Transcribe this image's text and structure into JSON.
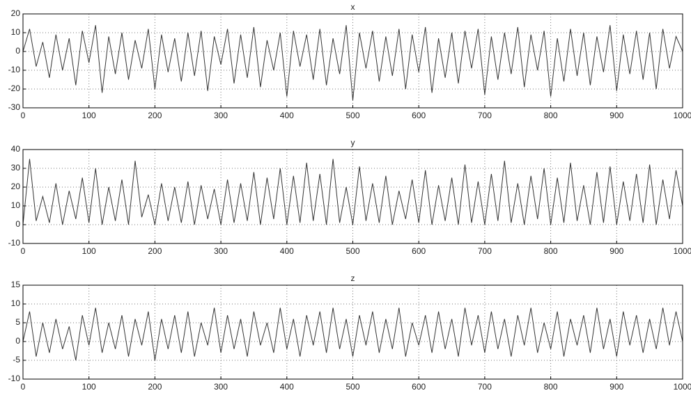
{
  "chart_data": [
    {
      "type": "line",
      "title": "x",
      "grid": true,
      "x": [
        0,
        10,
        20,
        30,
        40,
        50,
        60,
        70,
        80,
        90,
        100,
        110,
        120,
        130,
        140,
        150,
        160,
        170,
        180,
        190,
        200,
        210,
        220,
        230,
        240,
        250,
        260,
        270,
        280,
        290,
        300,
        310,
        320,
        330,
        340,
        350,
        360,
        370,
        380,
        390,
        400,
        410,
        420,
        430,
        440,
        450,
        460,
        470,
        480,
        490,
        500,
        510,
        520,
        530,
        540,
        550,
        560,
        570,
        580,
        590,
        600,
        610,
        620,
        630,
        640,
        650,
        660,
        670,
        680,
        690,
        700,
        710,
        720,
        730,
        740,
        750,
        760,
        770,
        780,
        790,
        800,
        810,
        820,
        830,
        840,
        850,
        860,
        870,
        880,
        890,
        900,
        910,
        920,
        930,
        940,
        950,
        960,
        970,
        980,
        990,
        1000
      ],
      "series": [
        {
          "color": "#333333",
          "values": [
            0,
            12,
            -8,
            5,
            -14,
            9,
            -10,
            7,
            -18,
            11,
            -6,
            14,
            -22,
            8,
            -12,
            10,
            -15,
            6,
            -9,
            12,
            -20,
            9,
            -11,
            7,
            -16,
            10,
            -13,
            11,
            -21,
            8,
            -7,
            12,
            -17,
            9,
            -14,
            13,
            -19,
            6,
            -10,
            10,
            -24,
            11,
            -8,
            9,
            -15,
            12,
            -18,
            7,
            -12,
            14,
            -26,
            10,
            -9,
            11,
            -16,
            8,
            -13,
            12,
            -20,
            9,
            -11,
            13,
            -22,
            7,
            -14,
            10,
            -17,
            11,
            -9,
            12,
            -23,
            8,
            -15,
            10,
            -12,
            13,
            -19,
            9,
            -10,
            11,
            -24,
            7,
            -16,
            12,
            -13,
            10,
            -18,
            8,
            -11,
            14,
            -21,
            9,
            -12,
            11,
            -15,
            10,
            -20,
            12,
            -9,
            8,
            0
          ]
        }
      ],
      "xlim": [
        0,
        1000
      ],
      "xticks": [
        0,
        100,
        200,
        300,
        400,
        500,
        600,
        700,
        800,
        900,
        1000
      ],
      "ylim": [
        -30,
        20
      ],
      "yticks": [
        -30,
        -20,
        -10,
        0,
        10,
        20
      ]
    },
    {
      "type": "line",
      "title": "y",
      "grid": true,
      "x": [
        0,
        10,
        20,
        30,
        40,
        50,
        60,
        70,
        80,
        90,
        100,
        110,
        120,
        130,
        140,
        150,
        160,
        170,
        180,
        190,
        200,
        210,
        220,
        230,
        240,
        250,
        260,
        270,
        280,
        290,
        300,
        310,
        320,
        330,
        340,
        350,
        360,
        370,
        380,
        390,
        400,
        410,
        420,
        430,
        440,
        450,
        460,
        470,
        480,
        490,
        500,
        510,
        520,
        530,
        540,
        550,
        560,
        570,
        580,
        590,
        600,
        610,
        620,
        630,
        640,
        650,
        660,
        670,
        680,
        690,
        700,
        710,
        720,
        730,
        740,
        750,
        760,
        770,
        780,
        790,
        800,
        810,
        820,
        830,
        840,
        850,
        860,
        870,
        880,
        890,
        900,
        910,
        920,
        930,
        940,
        950,
        960,
        970,
        980,
        990,
        1000
      ],
      "series": [
        {
          "color": "#333333",
          "values": [
            0,
            35,
            2,
            15,
            1,
            22,
            0,
            18,
            3,
            25,
            1,
            30,
            0,
            20,
            2,
            24,
            0,
            34,
            4,
            16,
            0,
            22,
            2,
            20,
            1,
            23,
            0,
            21,
            3,
            19,
            0,
            24,
            1,
            22,
            2,
            28,
            0,
            25,
            3,
            30,
            0,
            26,
            1,
            33,
            2,
            27,
            0,
            35,
            1,
            20,
            0,
            31,
            2,
            22,
            1,
            26,
            0,
            18,
            3,
            24,
            1,
            29,
            0,
            21,
            2,
            25,
            0,
            32,
            1,
            23,
            0,
            27,
            2,
            34,
            1,
            22,
            0,
            26,
            3,
            30,
            0,
            25,
            1,
            33,
            2,
            21,
            0,
            28,
            1,
            31,
            0,
            23,
            2,
            27,
            1,
            32,
            0,
            24,
            3,
            29,
            10
          ]
        }
      ],
      "xlim": [
        0,
        1000
      ],
      "xticks": [
        0,
        100,
        200,
        300,
        400,
        500,
        600,
        700,
        800,
        900,
        1000
      ],
      "ylim": [
        -10,
        40
      ],
      "yticks": [
        -10,
        0,
        10,
        20,
        30,
        40
      ]
    },
    {
      "type": "line",
      "title": "z",
      "grid": true,
      "x": [
        0,
        10,
        20,
        30,
        40,
        50,
        60,
        70,
        80,
        90,
        100,
        110,
        120,
        130,
        140,
        150,
        160,
        170,
        180,
        190,
        200,
        210,
        220,
        230,
        240,
        250,
        260,
        270,
        280,
        290,
        300,
        310,
        320,
        330,
        340,
        350,
        360,
        370,
        380,
        390,
        400,
        410,
        420,
        430,
        440,
        450,
        460,
        470,
        480,
        490,
        500,
        510,
        520,
        530,
        540,
        550,
        560,
        570,
        580,
        590,
        600,
        610,
        620,
        630,
        640,
        650,
        660,
        670,
        680,
        690,
        700,
        710,
        720,
        730,
        740,
        750,
        760,
        770,
        780,
        790,
        800,
        810,
        820,
        830,
        840,
        850,
        860,
        870,
        880,
        890,
        900,
        910,
        920,
        930,
        940,
        950,
        960,
        970,
        980,
        990,
        1000
      ],
      "series": [
        {
          "color": "#333333",
          "values": [
            0,
            8,
            -4,
            5,
            -3,
            6,
            -2,
            4,
            -5,
            7,
            -1,
            9,
            -3,
            5,
            -2,
            7,
            -4,
            6,
            -1,
            8,
            -5,
            6,
            -2,
            7,
            -3,
            8,
            -4,
            5,
            -1,
            9,
            -3,
            7,
            -2,
            6,
            -4,
            8,
            -1,
            5,
            -3,
            9,
            -2,
            6,
            -4,
            7,
            -1,
            8,
            -3,
            9,
            -2,
            6,
            -4,
            7,
            -1,
            8,
            -3,
            6,
            -2,
            9,
            -4,
            5,
            -1,
            7,
            -3,
            8,
            -2,
            6,
            -4,
            9,
            -1,
            7,
            -3,
            8,
            -2,
            6,
            -4,
            7,
            -1,
            9,
            -3,
            5,
            -2,
            8,
            -4,
            6,
            -1,
            7,
            -3,
            9,
            -2,
            6,
            -4,
            8,
            -1,
            7,
            -3,
            6,
            -2,
            9,
            -1,
            8,
            0
          ]
        }
      ],
      "xlim": [
        0,
        1000
      ],
      "xticks": [
        0,
        100,
        200,
        300,
        400,
        500,
        600,
        700,
        800,
        900,
        1000
      ],
      "ylim": [
        -10,
        15
      ],
      "yticks": [
        -10,
        -5,
        0,
        5,
        10,
        15
      ]
    }
  ]
}
